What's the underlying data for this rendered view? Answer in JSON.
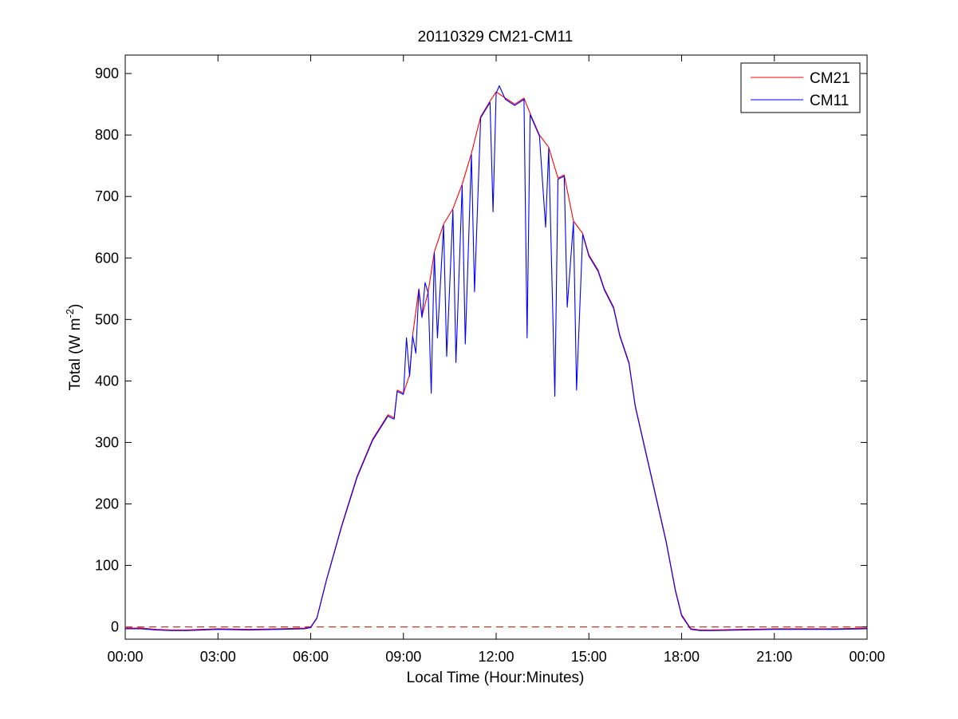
{
  "chart_data": {
    "type": "line",
    "title": "20110329 CM21-CM11",
    "xlabel": "Local Time (Hour:Minutes)",
    "ylabel": "Total (W m-2)",
    "ylabel_parts": {
      "main": "Total (W m",
      "sup": "-2",
      "end": ")"
    },
    "xlim": [
      0,
      24
    ],
    "ylim": [
      -20,
      930
    ],
    "x_ticks": [
      0,
      3,
      6,
      9,
      12,
      15,
      18,
      21,
      24
    ],
    "x_tick_labels": [
      "00:00",
      "03:00",
      "06:00",
      "09:00",
      "12:00",
      "15:00",
      "18:00",
      "21:00",
      "00:00"
    ],
    "y_ticks": [
      0,
      100,
      200,
      300,
      400,
      500,
      600,
      700,
      800,
      900
    ],
    "y_tick_labels": [
      "0",
      "100",
      "200",
      "300",
      "400",
      "500",
      "600",
      "700",
      "800",
      "900"
    ],
    "grid": false,
    "legend_position": "top-right",
    "reference_line": {
      "y": 0,
      "style": "dashed",
      "color": "#c0392b"
    },
    "series": [
      {
        "name": "CM21",
        "color": "#ff0000",
        "points": [
          [
            0,
            -2
          ],
          [
            0.5,
            -2
          ],
          [
            1,
            -4
          ],
          [
            1.5,
            -5
          ],
          [
            2,
            -5
          ],
          [
            3,
            -3
          ],
          [
            4,
            -4
          ],
          [
            5,
            -3
          ],
          [
            5.8,
            -2
          ],
          [
            6.0,
            0
          ],
          [
            6.2,
            15
          ],
          [
            6.5,
            75
          ],
          [
            7.0,
            165
          ],
          [
            7.5,
            245
          ],
          [
            8.0,
            305
          ],
          [
            8.5,
            345
          ],
          [
            8.7,
            340
          ],
          [
            8.8,
            385
          ],
          [
            9.0,
            380
          ],
          [
            9.2,
            410
          ],
          [
            9.3,
            475
          ],
          [
            9.5,
            550
          ],
          [
            9.6,
            505
          ],
          [
            9.8,
            545
          ],
          [
            10.0,
            610
          ],
          [
            10.3,
            655
          ],
          [
            10.6,
            680
          ],
          [
            10.9,
            720
          ],
          [
            11.2,
            770
          ],
          [
            11.5,
            830
          ],
          [
            11.8,
            855
          ],
          [
            12.0,
            870
          ],
          [
            12.3,
            860
          ],
          [
            12.6,
            850
          ],
          [
            12.9,
            860
          ],
          [
            13.1,
            835
          ],
          [
            13.4,
            800
          ],
          [
            13.7,
            780
          ],
          [
            14.0,
            730
          ],
          [
            14.2,
            735
          ],
          [
            14.5,
            660
          ],
          [
            14.8,
            640
          ],
          [
            15.0,
            605
          ],
          [
            15.3,
            580
          ],
          [
            15.5,
            550
          ],
          [
            15.8,
            520
          ],
          [
            16.0,
            475
          ],
          [
            16.3,
            430
          ],
          [
            16.5,
            360
          ],
          [
            17.0,
            250
          ],
          [
            17.5,
            140
          ],
          [
            17.8,
            60
          ],
          [
            18.0,
            20
          ],
          [
            18.3,
            -3
          ],
          [
            18.6,
            -5
          ],
          [
            19,
            -5
          ],
          [
            20,
            -4
          ],
          [
            21,
            -3
          ],
          [
            22,
            -3
          ],
          [
            23,
            -3
          ],
          [
            24,
            -2
          ]
        ]
      },
      {
        "name": "CM11",
        "color": "#0000ff",
        "points": [
          [
            0,
            -3
          ],
          [
            0.5,
            -3
          ],
          [
            1,
            -5
          ],
          [
            1.5,
            -6
          ],
          [
            2,
            -6
          ],
          [
            3,
            -4
          ],
          [
            4,
            -5
          ],
          [
            5,
            -4
          ],
          [
            5.8,
            -3
          ],
          [
            6.0,
            -1
          ],
          [
            6.2,
            14
          ],
          [
            6.5,
            74
          ],
          [
            7.0,
            163
          ],
          [
            7.5,
            243
          ],
          [
            8.0,
            303
          ],
          [
            8.5,
            343
          ],
          [
            8.6,
            340
          ],
          [
            8.7,
            338
          ],
          [
            8.8,
            383
          ],
          [
            9.0,
            378
          ],
          [
            9.1,
            470
          ],
          [
            9.2,
            408
          ],
          [
            9.3,
            473
          ],
          [
            9.4,
            445
          ],
          [
            9.5,
            548
          ],
          [
            9.6,
            503
          ],
          [
            9.7,
            560
          ],
          [
            9.8,
            543
          ],
          [
            9.9,
            380
          ],
          [
            10.0,
            608
          ],
          [
            10.1,
            470
          ],
          [
            10.3,
            653
          ],
          [
            10.4,
            440
          ],
          [
            10.6,
            678
          ],
          [
            10.7,
            430
          ],
          [
            10.9,
            718
          ],
          [
            11.0,
            460
          ],
          [
            11.2,
            768
          ],
          [
            11.3,
            545
          ],
          [
            11.5,
            828
          ],
          [
            11.8,
            853
          ],
          [
            11.9,
            675
          ],
          [
            12.0,
            868
          ],
          [
            12.1,
            880
          ],
          [
            12.3,
            858
          ],
          [
            12.6,
            848
          ],
          [
            12.9,
            858
          ],
          [
            13.0,
            470
          ],
          [
            13.1,
            833
          ],
          [
            13.4,
            798
          ],
          [
            13.6,
            650
          ],
          [
            13.7,
            778
          ],
          [
            13.9,
            375
          ],
          [
            14.0,
            728
          ],
          [
            14.2,
            733
          ],
          [
            14.3,
            520
          ],
          [
            14.5,
            658
          ],
          [
            14.6,
            385
          ],
          [
            14.8,
            638
          ],
          [
            15.0,
            603
          ],
          [
            15.3,
            578
          ],
          [
            15.5,
            548
          ],
          [
            15.8,
            518
          ],
          [
            16.0,
            473
          ],
          [
            16.3,
            428
          ],
          [
            16.5,
            358
          ],
          [
            17.0,
            248
          ],
          [
            17.5,
            138
          ],
          [
            17.8,
            58
          ],
          [
            18.0,
            18
          ],
          [
            18.3,
            -4
          ],
          [
            18.6,
            -6
          ],
          [
            19,
            -6
          ],
          [
            20,
            -5
          ],
          [
            21,
            -4
          ],
          [
            22,
            -4
          ],
          [
            23,
            -4
          ],
          [
            24,
            -3
          ]
        ]
      }
    ]
  }
}
